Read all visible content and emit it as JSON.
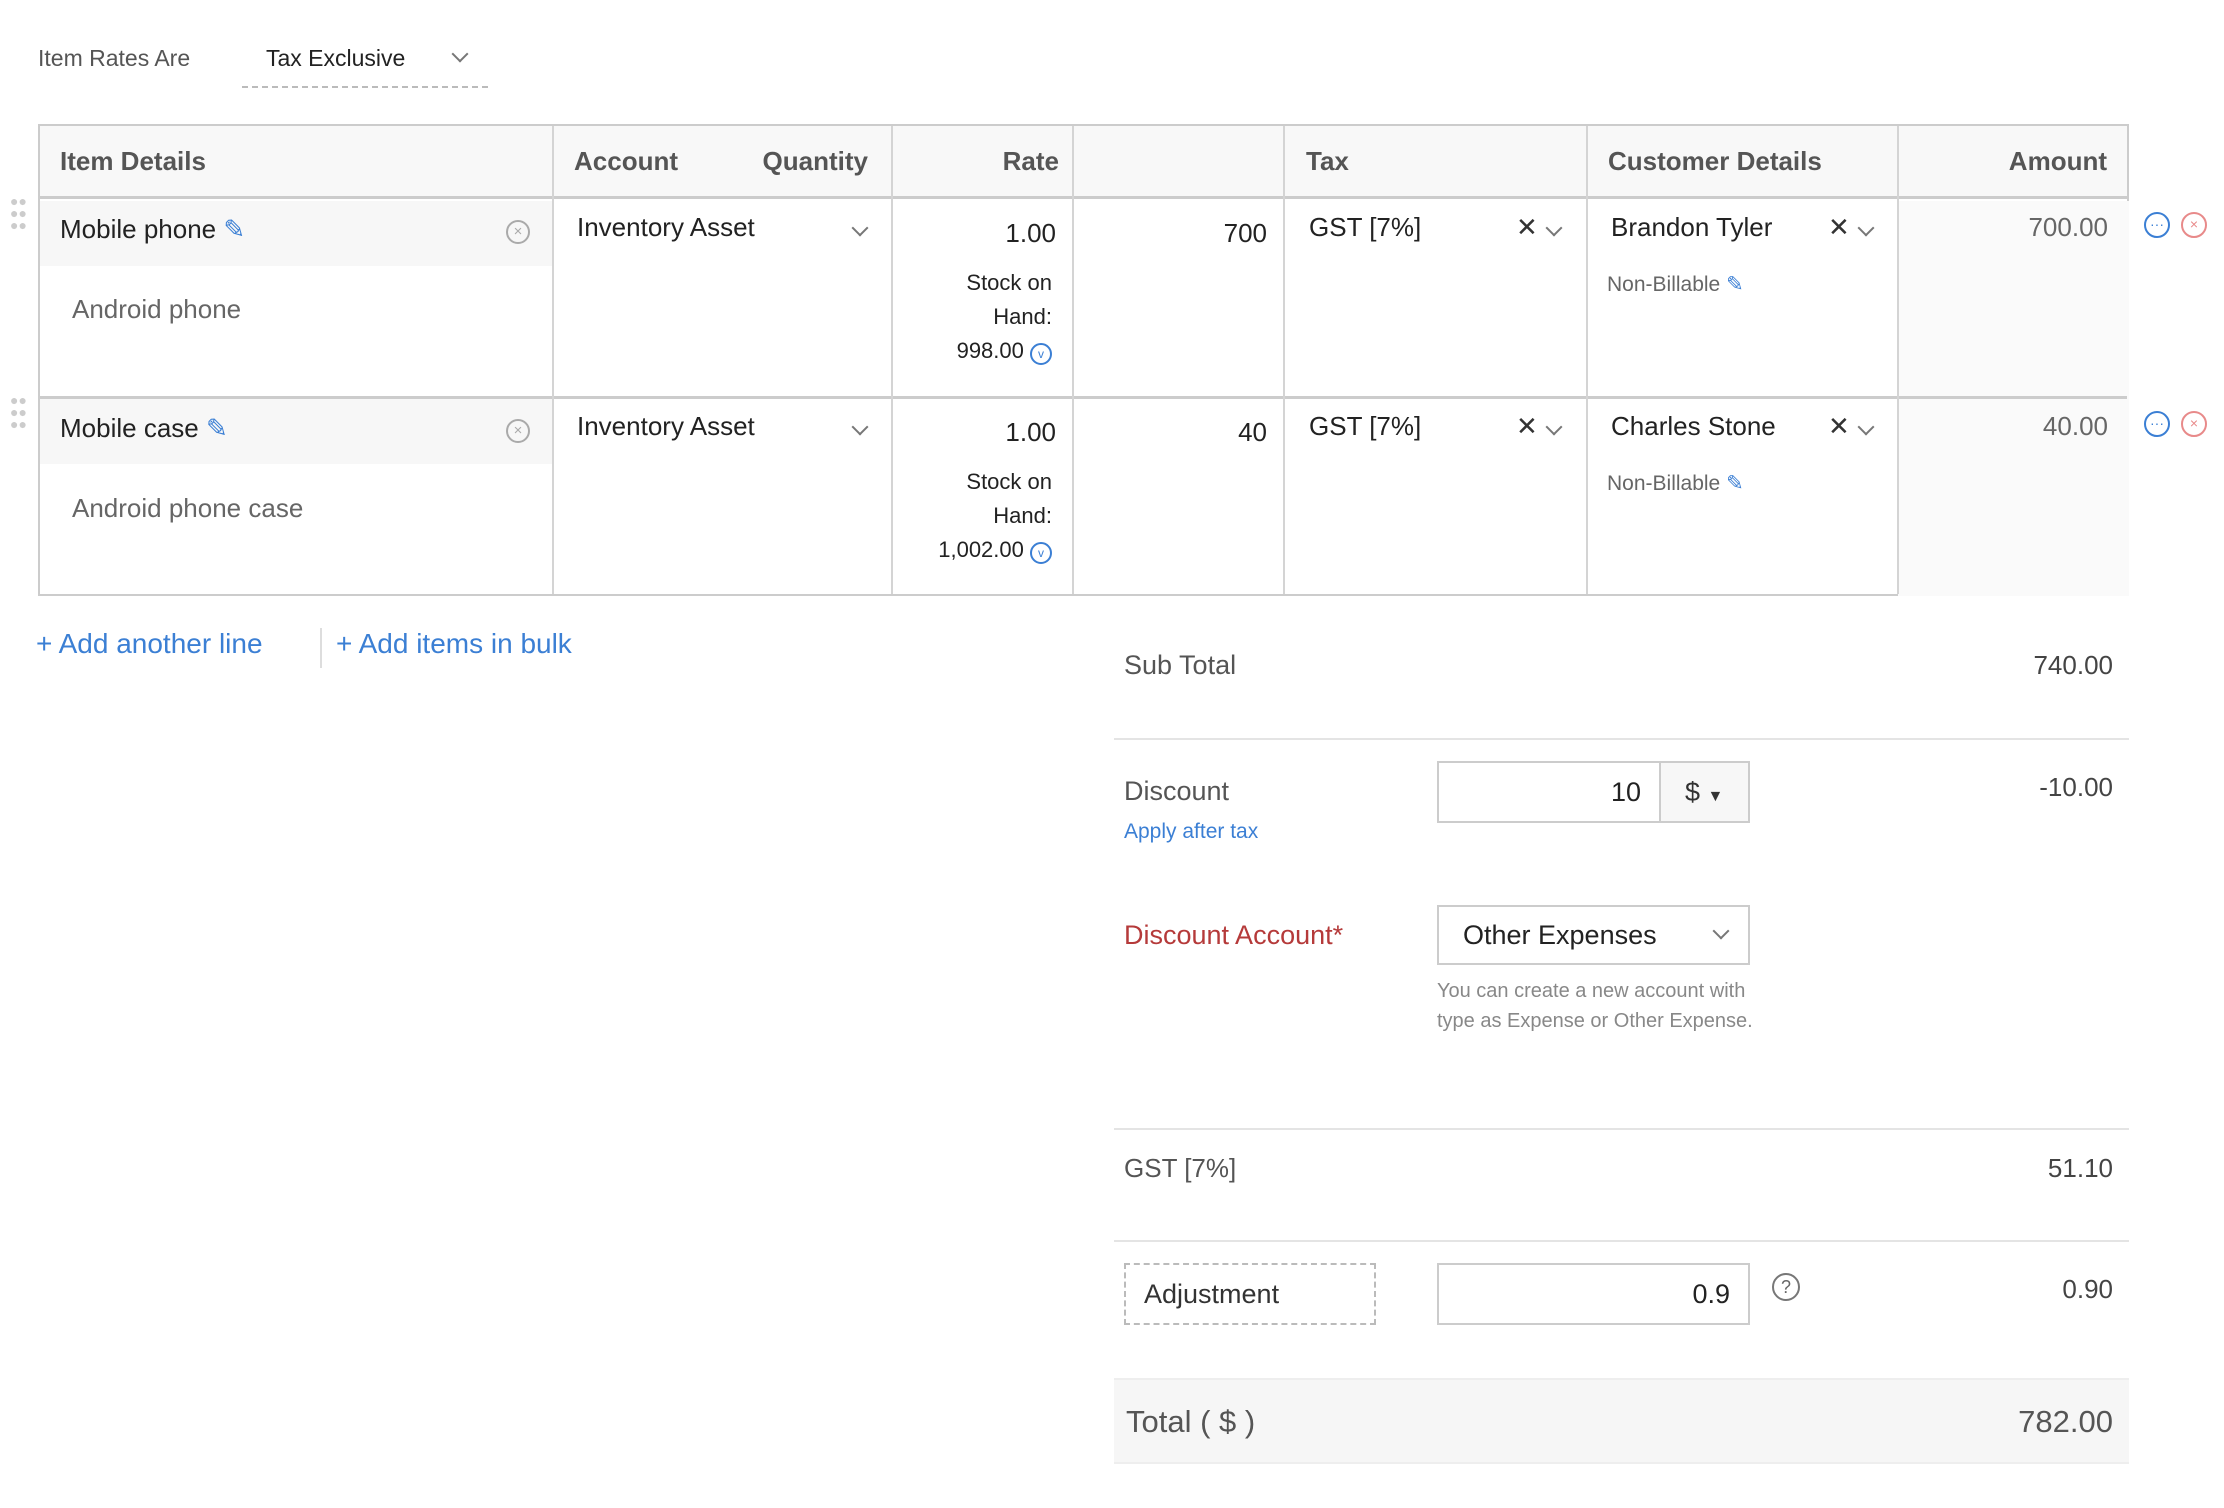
{
  "tax_mode": {
    "label": "Item Rates Are",
    "value": "Tax Exclusive"
  },
  "table": {
    "headers": [
      "Item Details",
      "Account",
      "Quantity",
      "Rate",
      "Tax",
      "Customer Details",
      "Amount"
    ],
    "rows": [
      {
        "name": "Mobile phone",
        "description": "Android phone",
        "account": "Inventory Asset",
        "quantity": "1.00",
        "stock_label": "Stock on",
        "stock_label2": "Hand:",
        "stock": "998.00",
        "rate": "700",
        "tax": "GST [7%]",
        "customer": "Brandon Tyler",
        "billable": "Non-Billable",
        "amount": "700.00"
      },
      {
        "name": "Mobile case",
        "description": "Android phone case",
        "account": "Inventory Asset",
        "quantity": "1.00",
        "stock_label": "Stock on",
        "stock_label2": "Hand:",
        "stock": "1,002.00",
        "rate": "40",
        "tax": "GST [7%]",
        "customer": "Charles Stone",
        "billable": "Non-Billable",
        "amount": "40.00"
      }
    ]
  },
  "actions": {
    "add_line": "Add another line",
    "add_bulk": "Add items in bulk"
  },
  "summary": {
    "sub_total_label": "Sub Total",
    "sub_total": "740.00",
    "discount_label": "Discount",
    "discount_input": "10",
    "discount_unit": "$",
    "discount_value": "-10.00",
    "apply_after_tax": "Apply after tax",
    "discount_account_label": "Discount Account*",
    "discount_account": "Other Expenses",
    "discount_account_help": "You can create a new account with type as Expense or Other Expense.",
    "gst_label": "GST [7%]",
    "gst_value": "51.10",
    "adjustment_label": "Adjustment",
    "adjustment_input": "0.9",
    "adjustment_value": "0.90",
    "total_label": "Total ( $ )",
    "total": "782.00"
  },
  "colors": {
    "accent": "#3b7fd4",
    "required": "#b53a3a",
    "remove": "#e88a8a"
  }
}
